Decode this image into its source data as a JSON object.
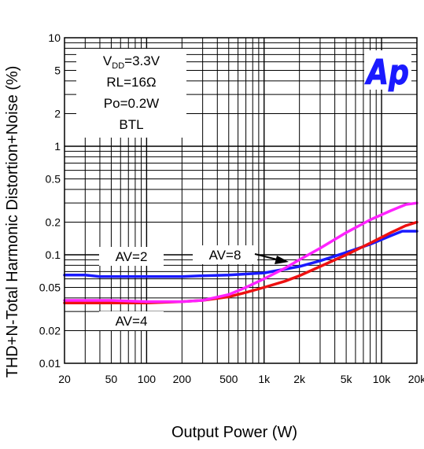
{
  "chart_data": {
    "type": "line",
    "title": "",
    "xlabel": "Output Power (W)",
    "ylabel": "THD+N-Total Harmonic Distortion+Noise (%)",
    "x_scale": "log",
    "y_scale": "log",
    "xlim": [
      20,
      20000
    ],
    "ylim": [
      0.01,
      10
    ],
    "grid": true,
    "x_ticks": [
      {
        "value": 20,
        "label": "20"
      },
      {
        "value": 50,
        "label": "50"
      },
      {
        "value": 100,
        "label": "100"
      },
      {
        "value": 200,
        "label": "200"
      },
      {
        "value": 500,
        "label": "500"
      },
      {
        "value": 1000,
        "label": "1k"
      },
      {
        "value": 2000,
        "label": "2k"
      },
      {
        "value": 5000,
        "label": "5k"
      },
      {
        "value": 10000,
        "label": "10k"
      },
      {
        "value": 20000,
        "label": "20k"
      }
    ],
    "y_ticks": [
      {
        "value": 0.01,
        "label": "0.01"
      },
      {
        "value": 0.02,
        "label": "0.02"
      },
      {
        "value": 0.05,
        "label": "0.05"
      },
      {
        "value": 0.1,
        "label": "0.1"
      },
      {
        "value": 0.2,
        "label": "0.2"
      },
      {
        "value": 0.5,
        "label": "0.5"
      },
      {
        "value": 1,
        "label": "1"
      },
      {
        "value": 2,
        "label": "2"
      },
      {
        "value": 5,
        "label": "5"
      },
      {
        "value": 10,
        "label": "10"
      }
    ],
    "series": [
      {
        "name": "AV=2",
        "color": "#1a1aff",
        "x": [
          20,
          30,
          40,
          100,
          200,
          300,
          500,
          1000,
          2000,
          3000,
          5000,
          8000,
          12000,
          15000,
          20000
        ],
        "y": [
          0.065,
          0.065,
          0.063,
          0.063,
          0.063,
          0.064,
          0.065,
          0.068,
          0.078,
          0.088,
          0.105,
          0.125,
          0.15,
          0.165,
          0.165
        ]
      },
      {
        "name": "AV=4",
        "color": "#ee1111",
        "x": [
          20,
          50,
          100,
          200,
          300,
          500,
          700,
          1000,
          1500,
          2000,
          3000,
          5000,
          8000,
          12000,
          16000,
          20000
        ],
        "y": [
          0.036,
          0.036,
          0.036,
          0.037,
          0.038,
          0.041,
          0.045,
          0.05,
          0.057,
          0.064,
          0.078,
          0.1,
          0.128,
          0.16,
          0.185,
          0.2
        ]
      },
      {
        "name": "AV=8",
        "color": "#ff22ff",
        "x": [
          20,
          50,
          100,
          200,
          300,
          500,
          700,
          1000,
          1500,
          2000,
          3000,
          5000,
          8000,
          12000,
          16000,
          20000
        ],
        "y": [
          0.038,
          0.038,
          0.037,
          0.037,
          0.038,
          0.043,
          0.05,
          0.06,
          0.075,
          0.09,
          0.115,
          0.16,
          0.21,
          0.255,
          0.29,
          0.3
        ]
      }
    ],
    "conditions": [
      {
        "id": "vdd",
        "main": "V",
        "sub": "DD",
        "rest": "=3.3V"
      },
      {
        "id": "rl",
        "text": "RL=16Ω"
      },
      {
        "id": "po",
        "text": "Po=0.2W"
      },
      {
        "id": "mode",
        "text": "BTL"
      }
    ],
    "annotations": [
      {
        "id": "av2",
        "text": "AV=2"
      },
      {
        "id": "av4",
        "text": "AV=4"
      },
      {
        "id": "av8",
        "text": "AV=8",
        "arrow": true
      }
    ],
    "logo": {
      "text": "Ap",
      "color": "#1a1aff"
    }
  }
}
